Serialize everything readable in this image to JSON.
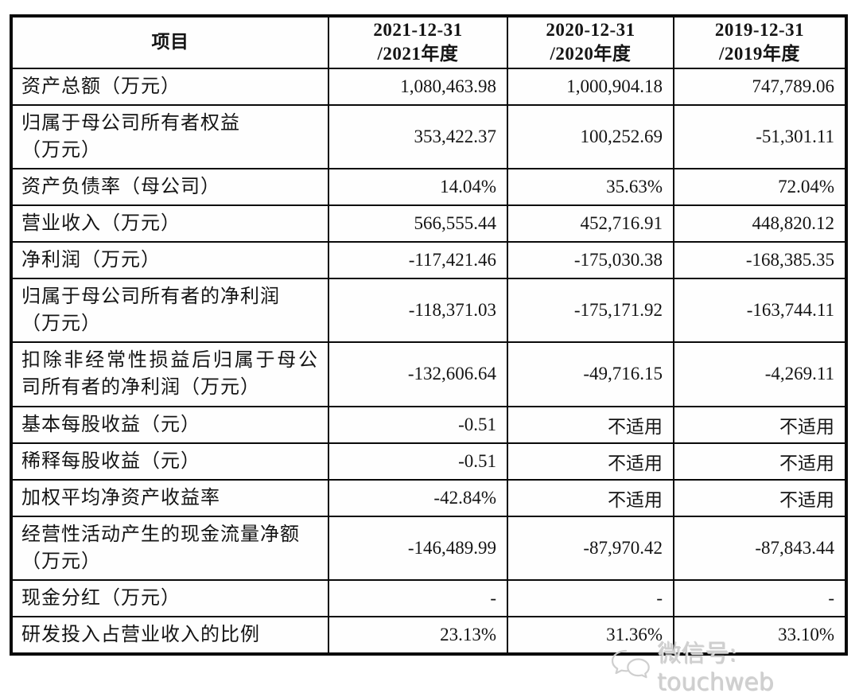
{
  "table": {
    "header": {
      "item_label": "项目",
      "periods": [
        "2021-12-31\n/2021年度",
        "2020-12-31\n/2020年度",
        "2019-12-31\n/2019年度"
      ]
    },
    "rows": [
      {
        "label": "资产总额（万元）",
        "values": [
          "1,080,463.98",
          "1,000,904.18",
          "747,789.06"
        ]
      },
      {
        "label": "归属于母公司所有者权益\n（万元）",
        "values": [
          "353,422.37",
          "100,252.69",
          "-51,301.11"
        ]
      },
      {
        "label": "资产负债率（母公司）",
        "values": [
          "14.04%",
          "35.63%",
          "72.04%"
        ]
      },
      {
        "label": "营业收入（万元）",
        "values": [
          "566,555.44",
          "452,716.91",
          "448,820.12"
        ]
      },
      {
        "label": "净利润（万元）",
        "values": [
          "-117,421.46",
          "-175,030.38",
          "-168,385.35"
        ]
      },
      {
        "label": "归属于母公司所有者的净利润\n（万元）",
        "values": [
          "-118,371.03",
          "-175,171.92",
          "-163,744.11"
        ]
      },
      {
        "label": "扣除非经常性损益后归属于母公司所有者的净利润（万元）",
        "values": [
          "-132,606.64",
          "-49,716.15",
          "-4,269.11"
        ]
      },
      {
        "label": "基本每股收益（元）",
        "values": [
          "-0.51",
          "不适用",
          "不适用"
        ]
      },
      {
        "label": "稀释每股收益（元）",
        "values": [
          "-0.51",
          "不适用",
          "不适用"
        ]
      },
      {
        "label": "加权平均净资产收益率",
        "values": [
          "-42.84%",
          "不适用",
          "不适用"
        ]
      },
      {
        "label": "经营性活动产生的现金流量净额\n（万元）",
        "values": [
          "-146,489.99",
          "-87,970.42",
          "-87,843.44"
        ]
      },
      {
        "label": "现金分红（万元）",
        "values": [
          "-",
          "-",
          "-"
        ]
      },
      {
        "label": "研发投入占营业收入的比例",
        "values": [
          "23.13%",
          "31.36%",
          "33.10%"
        ]
      }
    ]
  },
  "watermark": {
    "icon": "wechat-icon",
    "text": "微信号: touchweb",
    "color": "#cfcfcf"
  }
}
